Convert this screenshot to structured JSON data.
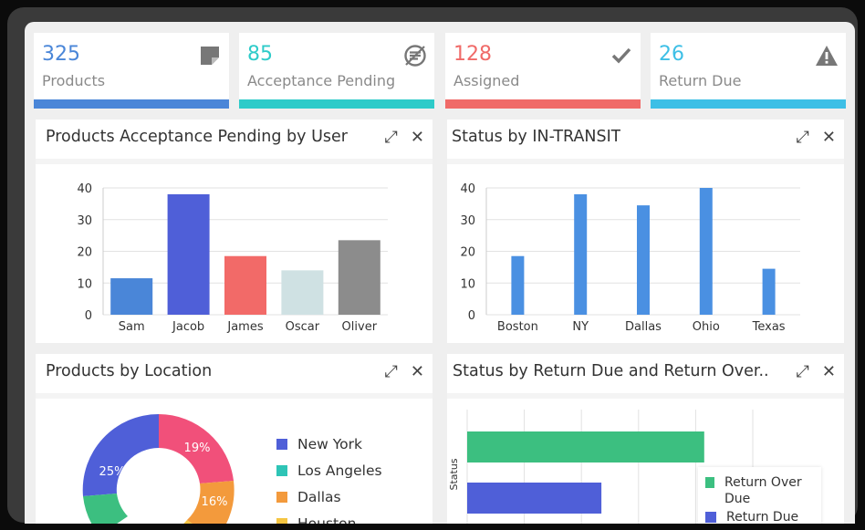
{
  "kpis": [
    {
      "value": "325",
      "label": "Products",
      "color": "#4a86d8",
      "icon": "sticky-note-icon"
    },
    {
      "value": "85",
      "label": "Acceptance Pending",
      "color": "#2ecbc9",
      "icon": "pending-list-icon"
    },
    {
      "value": "128",
      "label": "Assigned",
      "color": "#f06a68",
      "icon": "check-icon"
    },
    {
      "value": "26",
      "label": "Return Due",
      "color": "#3dbfe6",
      "icon": "warning-icon"
    }
  ],
  "panels": {
    "acceptance": {
      "title": "Products Acceptance Pending by User"
    },
    "transit": {
      "title": "Status by IN-TRANSIT"
    },
    "location": {
      "title": "Products by Location"
    },
    "return": {
      "title": "Status by Return Due and Return Over.."
    }
  },
  "icons": {
    "expand": "⤢",
    "close": "✕"
  },
  "chart_data": [
    {
      "type": "bar",
      "title": "Products Acceptance Pending by User",
      "categories": [
        "Sam",
        "Jacob",
        "James",
        "Oscar",
        "Oliver"
      ],
      "values": [
        11.5,
        38,
        18.5,
        14,
        23.5
      ],
      "colors": [
        "#4a86d8",
        "#4f5fd8",
        "#f26a68",
        "#cfe1e3",
        "#8c8c8c"
      ],
      "yticks": [
        "0",
        "10",
        "20",
        "30",
        "40"
      ],
      "ylim": [
        0,
        40
      ],
      "grid": true
    },
    {
      "type": "bar",
      "title": "Status by IN-TRANSIT",
      "categories": [
        "Boston",
        "NY",
        "Dallas",
        "Ohio",
        "Texas"
      ],
      "values": [
        18.5,
        38,
        34.5,
        40,
        14.5
      ],
      "color": "#4a90e2",
      "yticks": [
        "0",
        "10",
        "20",
        "30",
        "40"
      ],
      "ylim": [
        0,
        40
      ],
      "grid": true
    },
    {
      "type": "pie",
      "title": "Products by Location",
      "labels": [
        "New York",
        "Los Angeles",
        "Dallas",
        "Houston"
      ],
      "colors": [
        "#4f5fd8",
        "#2ec4b6",
        "#f39a3c",
        "#f5c542"
      ],
      "visible_slices": [
        {
          "label": "25%",
          "color": "#4f5fd8"
        },
        {
          "label": "19%",
          "color": "#f1507a"
        },
        {
          "label": "16%",
          "color": "#f39a3c"
        }
      ],
      "legend_placement": "right"
    },
    {
      "type": "bar",
      "title": "Status by Return Due and Return Over..",
      "orientation": "horizontal",
      "ylabel": "Status",
      "series": [
        {
          "name": "Return Over Due",
          "color": "#3cbf80",
          "value": 0.83
        },
        {
          "name": "Return Due",
          "color": "#4f5fd8",
          "value": 0.47
        }
      ],
      "legend_placement": "bottom-right",
      "grid": true
    }
  ]
}
